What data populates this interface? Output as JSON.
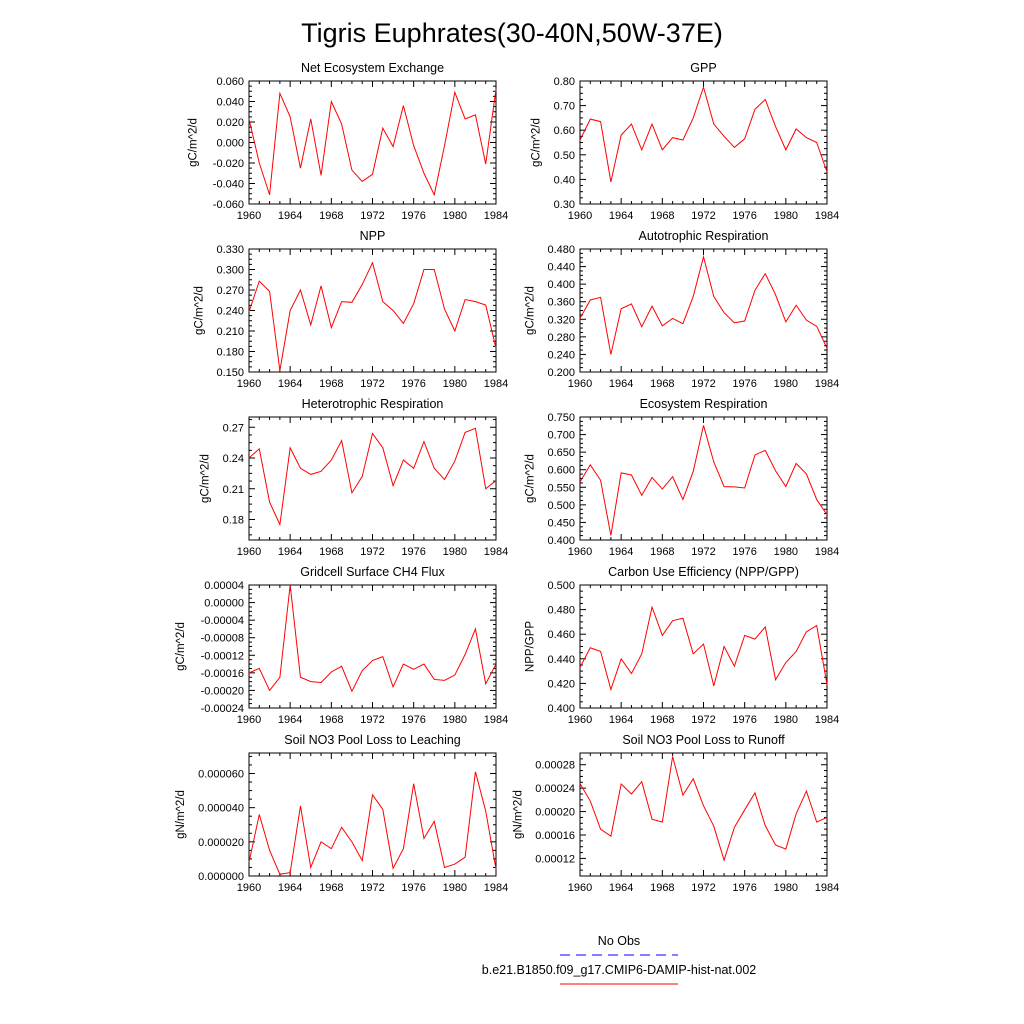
{
  "title": "Tigris Euphrates(30-40N,50W-37E)",
  "colors": {
    "series": "#ff0000",
    "obs": "#0000ff",
    "axis": "#000000"
  },
  "legend": {
    "items": [
      {
        "label": "No Obs",
        "style": "dashed",
        "color": "#0000ff"
      },
      {
        "label": "b.e21.B1850.f09_g17.CMIP6-DAMIP-hist-nat.002",
        "style": "solid",
        "color": "#ff0000"
      }
    ]
  },
  "chart_data": [
    {
      "type": "line",
      "title": "Net Ecosystem Exchange",
      "ylabel": "gC/m^2/d",
      "xlim": [
        1960,
        1984
      ],
      "ylim": [
        -0.06,
        0.06
      ],
      "xticks": [
        "1960",
        "1964",
        "1968",
        "1972",
        "1976",
        "1980",
        "1984"
      ],
      "yticks": [
        "-0.060",
        "-0.040",
        "-0.020",
        "0.000",
        "0.020",
        "0.040",
        "0.060"
      ],
      "y": [
        0.023,
        -0.02,
        -0.051,
        0.048,
        0.025,
        -0.025,
        0.023,
        -0.032,
        0.04,
        0.018,
        -0.027,
        -0.038,
        -0.031,
        0.014,
        -0.004,
        0.036,
        -0.003,
        -0.03,
        -0.051,
        -0.003,
        0.049,
        0.023,
        0.027,
        -0.021,
        0.052
      ]
    },
    {
      "type": "line",
      "title": "GPP",
      "ylabel": "gC/m^2/d",
      "xlim": [
        1960,
        1984
      ],
      "ylim": [
        0.3,
        0.8
      ],
      "xticks": [
        "1960",
        "1964",
        "1968",
        "1972",
        "1976",
        "1980",
        "1984"
      ],
      "yticks": [
        "0.30",
        "0.40",
        "0.50",
        "0.60",
        "0.70",
        "0.80"
      ],
      "y": [
        0.56,
        0.645,
        0.635,
        0.39,
        0.58,
        0.625,
        0.52,
        0.625,
        0.52,
        0.57,
        0.56,
        0.65,
        0.775,
        0.625,
        0.575,
        0.53,
        0.565,
        0.685,
        0.725,
        0.615,
        0.52,
        0.605,
        0.57,
        0.55,
        0.43
      ]
    },
    {
      "type": "line",
      "title": "NPP",
      "ylabel": "gC/m^2/d",
      "xlim": [
        1960,
        1984
      ],
      "ylim": [
        0.15,
        0.33
      ],
      "xticks": [
        "1960",
        "1964",
        "1968",
        "1972",
        "1976",
        "1980",
        "1984"
      ],
      "yticks": [
        "0.150",
        "0.180",
        "0.210",
        "0.240",
        "0.270",
        "0.300",
        "0.330"
      ],
      "y": [
        0.238,
        0.283,
        0.268,
        0.152,
        0.24,
        0.27,
        0.219,
        0.276,
        0.215,
        0.253,
        0.252,
        0.278,
        0.31,
        0.253,
        0.24,
        0.221,
        0.25,
        0.3,
        0.3,
        0.242,
        0.21,
        0.256,
        0.253,
        0.248,
        0.185
      ]
    },
    {
      "type": "line",
      "title": "Autotrophic Respiration",
      "ylabel": "gC/m^2/d",
      "xlim": [
        1960,
        1984
      ],
      "ylim": [
        0.2,
        0.48
      ],
      "xticks": [
        "1960",
        "1964",
        "1968",
        "1972",
        "1976",
        "1980",
        "1984"
      ],
      "yticks": [
        "0.200",
        "0.240",
        "0.280",
        "0.320",
        "0.360",
        "0.400",
        "0.440",
        "0.480"
      ],
      "y": [
        0.322,
        0.364,
        0.37,
        0.24,
        0.344,
        0.355,
        0.303,
        0.35,
        0.305,
        0.322,
        0.31,
        0.372,
        0.462,
        0.372,
        0.335,
        0.312,
        0.316,
        0.386,
        0.424,
        0.376,
        0.314,
        0.352,
        0.318,
        0.304,
        0.254
      ]
    },
    {
      "type": "line",
      "title": "Heterotrophic Respiration",
      "ylabel": "gC/m^2/d",
      "xlim": [
        1960,
        1984
      ],
      "ylim": [
        0.16,
        0.28
      ],
      "xticks": [
        "1960",
        "1964",
        "1968",
        "1972",
        "1976",
        "1980",
        "1984"
      ],
      "yticks": [
        "0.18",
        "0.21",
        "0.24",
        "0.27"
      ],
      "y": [
        0.24,
        0.249,
        0.197,
        0.175,
        0.25,
        0.23,
        0.224,
        0.227,
        0.238,
        0.257,
        0.206,
        0.222,
        0.264,
        0.25,
        0.213,
        0.238,
        0.23,
        0.256,
        0.23,
        0.219,
        0.237,
        0.265,
        0.269,
        0.21,
        0.218
      ]
    },
    {
      "type": "line",
      "title": "Ecosystem Respiration",
      "ylabel": "gC/m^2/d",
      "xlim": [
        1960,
        1984
      ],
      "ylim": [
        0.4,
        0.75
      ],
      "xticks": [
        "1960",
        "1964",
        "1968",
        "1972",
        "1976",
        "1980",
        "1984"
      ],
      "yticks": [
        "0.400",
        "0.450",
        "0.500",
        "0.550",
        "0.600",
        "0.650",
        "0.700",
        "0.750"
      ],
      "y": [
        0.565,
        0.614,
        0.57,
        0.413,
        0.591,
        0.585,
        0.527,
        0.578,
        0.545,
        0.58,
        0.515,
        0.595,
        0.726,
        0.622,
        0.552,
        0.551,
        0.548,
        0.642,
        0.655,
        0.597,
        0.552,
        0.618,
        0.588,
        0.515,
        0.472
      ]
    },
    {
      "type": "line",
      "title": "Gridcell Surface CH4 Flux",
      "ylabel": "gC/m^2/d",
      "xlim": [
        1960,
        1984
      ],
      "ylim": [
        -0.00024,
        4e-05
      ],
      "xticks": [
        "1960",
        "1964",
        "1968",
        "1972",
        "1976",
        "1980",
        "1984"
      ],
      "yticks": [
        "-0.00024",
        "-0.00020",
        "-0.00016",
        "-0.00012",
        "-0.00008",
        "-0.00004",
        "0.00000",
        "0.00004"
      ],
      "y": [
        -0.00016,
        -0.00015,
        -0.0002,
        -0.00017,
        4e-05,
        -0.00017,
        -0.00018,
        -0.000182,
        -0.000158,
        -0.000145,
        -0.000202,
        -0.000155,
        -0.000132,
        -0.000123,
        -0.000192,
        -0.00014,
        -0.000152,
        -0.00014,
        -0.000175,
        -0.000177,
        -0.000165,
        -0.000118,
        -6e-05,
        -0.000185,
        -0.00014
      ]
    },
    {
      "type": "line",
      "title": "Carbon Use Efficiency (NPP/GPP)",
      "ylabel": "NPP/GPP",
      "xlim": [
        1960,
        1984
      ],
      "ylim": [
        0.4,
        0.5
      ],
      "xticks": [
        "1960",
        "1964",
        "1968",
        "1972",
        "1976",
        "1980",
        "1984"
      ],
      "yticks": [
        "0.400",
        "0.420",
        "0.440",
        "0.460",
        "0.480",
        "0.500"
      ],
      "y": [
        0.433,
        0.449,
        0.446,
        0.415,
        0.44,
        0.428,
        0.444,
        0.482,
        0.459,
        0.471,
        0.473,
        0.444,
        0.452,
        0.418,
        0.45,
        0.434,
        0.459,
        0.456,
        0.466,
        0.423,
        0.437,
        0.446,
        0.462,
        0.467,
        0.419
      ]
    },
    {
      "type": "line",
      "title": "Soil NO3 Pool Loss to Leaching",
      "ylabel": "gN/m^2/d",
      "xlim": [
        1960,
        1984
      ],
      "ylim": [
        0,
        7.2e-05
      ],
      "xticks": [
        "1960",
        "1964",
        "1968",
        "1972",
        "1976",
        "1980",
        "1984"
      ],
      "yticks": [
        "0.000000",
        "0.000020",
        "0.000040",
        "0.000060"
      ],
      "y": [
        8e-06,
        3.6e-05,
        1.5e-05,
        1e-06,
        2e-06,
        4.1e-05,
        5e-06,
        2e-05,
        1.6e-05,
        2.85e-05,
        2e-05,
        9e-06,
        4.75e-05,
        3.9e-05,
        4.5e-06,
        1.6e-05,
        5.4e-05,
        2.2e-05,
        3.2e-05,
        5e-06,
        7e-06,
        1.1e-05,
        6.1e-05,
        3.8e-05,
        4e-06
      ]
    },
    {
      "type": "line",
      "title": "Soil NO3 Pool Loss to Runoff",
      "ylabel": "gN/m^2/d",
      "xlim": [
        1960,
        1984
      ],
      "ylim": [
        9e-05,
        0.0003
      ],
      "xticks": [
        "1960",
        "1964",
        "1968",
        "1972",
        "1976",
        "1980",
        "1984"
      ],
      "yticks": [
        "0.00012",
        "0.00016",
        "0.00020",
        "0.00024",
        "0.00028"
      ],
      "y": [
        0.000248,
        0.000218,
        0.00017,
        0.000158,
        0.000247,
        0.00023,
        0.000251,
        0.000187,
        0.000182,
        0.000294,
        0.000228,
        0.000256,
        0.00021,
        0.000175,
        0.000117,
        0.000173,
        0.000203,
        0.000232,
        0.000176,
        0.000143,
        0.000136,
        0.000196,
        0.000235,
        0.000182,
        0.00019
      ]
    }
  ]
}
